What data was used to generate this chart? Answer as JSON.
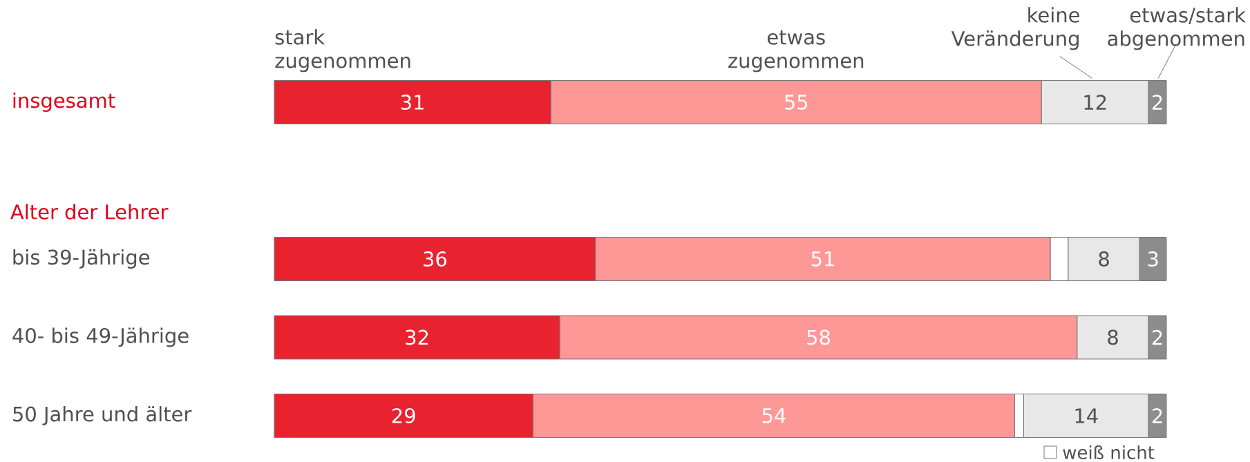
{
  "chart_data": {
    "type": "bar",
    "orientation": "horizontal",
    "stacked": true,
    "categories": [
      "insgesamt",
      null,
      "bis 39-Jährige",
      "40- bis 49-Jährige",
      "50 Jahre und älter"
    ],
    "series": [
      {
        "name": "stark zugenommen",
        "color": "#e8232f",
        "values": [
          31,
          null,
          36,
          32,
          29
        ],
        "value_labels": [
          "31",
          null,
          "36",
          "32",
          "29"
        ]
      },
      {
        "name": "etwas zugenommen",
        "color": "#fe9896",
        "values": [
          55,
          null,
          51,
          58,
          54
        ],
        "value_labels": [
          "55",
          null,
          "51",
          "58",
          "54"
        ]
      },
      {
        "name": "weiß nicht",
        "color": "#ffffff",
        "values": [
          null,
          null,
          2,
          null,
          1
        ]
      },
      {
        "name": "keine Veränderung",
        "color": "#e8e8e8",
        "values": [
          12,
          null,
          8,
          8,
          14
        ],
        "value_labels": [
          "12",
          null,
          "8",
          "8",
          "14"
        ]
      },
      {
        "name": "etwas/stark abgenommen",
        "color": "#8c8c8c",
        "values": [
          2,
          null,
          3,
          2,
          2
        ],
        "value_labels": [
          "2",
          null,
          "3",
          "2",
          "2"
        ]
      }
    ],
    "annotations": [
      "Alter der Lehrer"
    ]
  }
}
